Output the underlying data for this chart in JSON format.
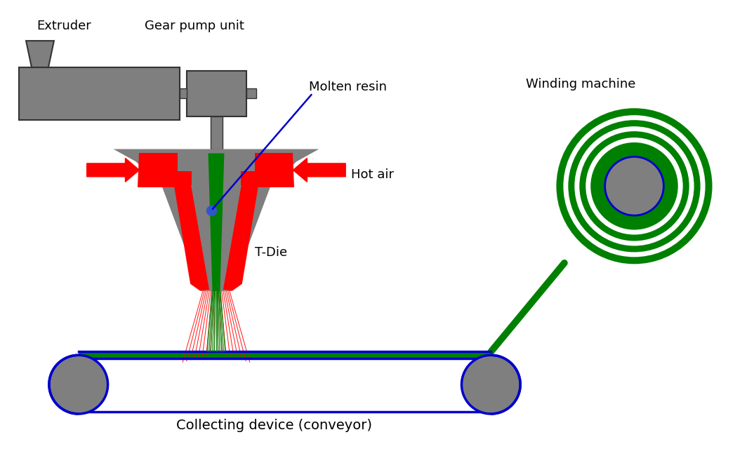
{
  "bg_color": "#ffffff",
  "gray": "#7f7f7f",
  "green": "#008000",
  "red": "#ff0000",
  "blue_line": "#0000cc",
  "blue_dot": "#3355cc",
  "label_extruder": "Extruder",
  "label_gear_pump": "Gear pump unit",
  "label_molten_resin": "Molten resin",
  "label_hot_air": "Hot air",
  "label_tdie": "T-Die",
  "label_collecting": "Collecting device (conveyor)",
  "label_winding": "Winding machine",
  "fontsize": 13
}
